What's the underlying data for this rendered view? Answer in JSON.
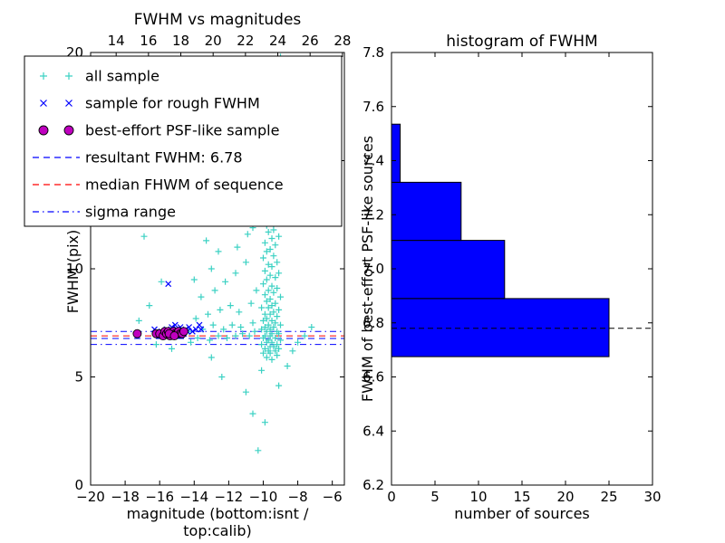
{
  "figure": {
    "background": "#ffffff"
  },
  "chart_data": [
    {
      "type": "scatter",
      "title": "FWHM vs magnitudes",
      "xlabel": "magnitude (bottom:isnt / top:calib)",
      "ylabel": "FWHM (pix)",
      "xlim": [
        -20,
        -5.3
      ],
      "ylim": [
        0,
        20
      ],
      "xticks": [
        [
          -20,
          "−20"
        ],
        [
          -18,
          "−18"
        ],
        [
          -16,
          "−16"
        ],
        [
          -14,
          "−14"
        ],
        [
          -12,
          "−12"
        ],
        [
          -10,
          "−10"
        ],
        [
          -8,
          "−8"
        ],
        [
          -6,
          "−6"
        ]
      ],
      "yticks": [
        [
          0,
          "0"
        ],
        [
          5,
          "5"
        ],
        [
          10,
          "10"
        ],
        [
          15,
          "15"
        ],
        [
          20,
          "20"
        ]
      ],
      "top_axis": {
        "lim": [
          12.42,
          28.12
        ],
        "ticks": [
          14,
          16,
          18,
          20,
          22,
          24,
          26,
          28
        ]
      },
      "series": [
        {
          "name": "all sample",
          "marker": "plus",
          "color": "#3BD1C3",
          "points": [
            [
              -9.5,
              5.8
            ],
            [
              -9.8,
              5.9
            ],
            [
              -9.2,
              6.0
            ],
            [
              -9.6,
              6.1
            ],
            [
              -10.0,
              6.1
            ],
            [
              -9.3,
              6.2
            ],
            [
              -9.7,
              6.2
            ],
            [
              -9.1,
              6.3
            ],
            [
              -9.9,
              6.3
            ],
            [
              -9.4,
              6.4
            ],
            [
              -9.6,
              6.4
            ],
            [
              -10.1,
              6.5
            ],
            [
              -9.2,
              6.5
            ],
            [
              -9.8,
              6.6
            ],
            [
              -9.5,
              6.6
            ],
            [
              -9.0,
              6.7
            ],
            [
              -9.7,
              6.7
            ],
            [
              -10.0,
              6.8
            ],
            [
              -9.3,
              6.8
            ],
            [
              -9.6,
              6.9
            ],
            [
              -9.9,
              6.9
            ],
            [
              -9.1,
              7.0
            ],
            [
              -9.5,
              7.0
            ],
            [
              -9.8,
              7.1
            ],
            [
              -9.2,
              7.1
            ],
            [
              -10.1,
              7.2
            ],
            [
              -9.6,
              7.2
            ],
            [
              -9.4,
              7.3
            ],
            [
              -9.9,
              7.3
            ],
            [
              -9.0,
              7.4
            ],
            [
              -9.7,
              7.4
            ],
            [
              -9.3,
              7.5
            ],
            [
              -10.0,
              7.6
            ],
            [
              -9.5,
              7.6
            ],
            [
              -9.8,
              7.7
            ],
            [
              -9.2,
              7.8
            ],
            [
              -9.6,
              7.9
            ],
            [
              -9.9,
              7.9
            ],
            [
              -9.4,
              8.0
            ],
            [
              -9.1,
              8.1
            ],
            [
              -9.7,
              8.2
            ],
            [
              -10.1,
              8.2
            ],
            [
              -9.5,
              8.3
            ],
            [
              -9.3,
              8.4
            ],
            [
              -9.8,
              8.5
            ],
            [
              -9.6,
              8.6
            ],
            [
              -9.0,
              8.7
            ],
            [
              -9.9,
              8.8
            ],
            [
              -9.4,
              8.9
            ],
            [
              -9.7,
              9.0
            ],
            [
              -9.2,
              9.1
            ],
            [
              -9.5,
              9.2
            ],
            [
              -10.0,
              9.3
            ],
            [
              -9.8,
              9.5
            ],
            [
              -9.3,
              9.6
            ],
            [
              -9.6,
              9.7
            ],
            [
              -9.1,
              9.8
            ],
            [
              -9.9,
              9.9
            ],
            [
              -9.5,
              10.1
            ],
            [
              -9.7,
              10.2
            ],
            [
              -9.2,
              10.3
            ],
            [
              -10.0,
              10.5
            ],
            [
              -9.4,
              10.6
            ],
            [
              -9.8,
              10.8
            ],
            [
              -9.6,
              10.9
            ],
            [
              -9.3,
              11.1
            ],
            [
              -9.9,
              11.2
            ],
            [
              -9.5,
              11.4
            ],
            [
              -9.1,
              11.5
            ],
            [
              -9.7,
              11.7
            ],
            [
              -9.4,
              11.8
            ],
            [
              -9.8,
              12.0
            ],
            [
              -9.6,
              12.1
            ],
            [
              -9.2,
              12.3
            ],
            [
              -14.2,
              6.6
            ],
            [
              -13.8,
              6.8
            ],
            [
              -13.1,
              6.7
            ],
            [
              -12.6,
              6.9
            ],
            [
              -12.1,
              6.8
            ],
            [
              -11.6,
              6.9
            ],
            [
              -11.2,
              7.0
            ],
            [
              -10.8,
              6.9
            ],
            [
              -10.5,
              7.1
            ],
            [
              -13.5,
              7.2
            ],
            [
              -12.9,
              7.4
            ],
            [
              -12.3,
              7.2
            ],
            [
              -11.8,
              7.4
            ],
            [
              -11.3,
              7.3
            ],
            [
              -10.6,
              7.5
            ],
            [
              -13.9,
              7.7
            ],
            [
              -13.2,
              7.9
            ],
            [
              -12.5,
              8.1
            ],
            [
              -11.9,
              8.3
            ],
            [
              -11.4,
              8.0
            ],
            [
              -10.7,
              8.4
            ],
            [
              -13.6,
              8.7
            ],
            [
              -12.8,
              9.0
            ],
            [
              -12.2,
              9.4
            ],
            [
              -11.6,
              9.8
            ],
            [
              -11.0,
              10.3
            ],
            [
              -12.6,
              10.8
            ],
            [
              -13.3,
              11.3
            ],
            [
              -11.5,
              11.0
            ],
            [
              -10.9,
              11.6
            ],
            [
              -12.0,
              12.1
            ],
            [
              -12.9,
              12.6
            ],
            [
              -11.2,
              12.4
            ],
            [
              -13.0,
              10.0
            ],
            [
              -14.0,
              9.5
            ],
            [
              -10.4,
              9.0
            ],
            [
              -10.6,
              11.9
            ],
            [
              -11.8,
              12.8
            ],
            [
              -13.4,
              12.2
            ],
            [
              -14.3,
              7.1
            ],
            [
              -16.5,
              12.9
            ],
            [
              -15.8,
              13.4
            ],
            [
              -15.2,
              12.7
            ],
            [
              -14.6,
              13.8
            ],
            [
              -14.0,
              14.5
            ],
            [
              -13.5,
              13.2
            ],
            [
              -13.0,
              14.9
            ],
            [
              -12.5,
              15.6
            ],
            [
              -12.0,
              14.2
            ],
            [
              -11.5,
              15.1
            ],
            [
              -11.0,
              16.0
            ],
            [
              -10.5,
              15.4
            ],
            [
              -10.0,
              16.6
            ],
            [
              -9.6,
              17.2
            ],
            [
              -9.2,
              16.1
            ],
            [
              -8.8,
              17.8
            ],
            [
              -8.4,
              16.9
            ],
            [
              -8.0,
              17.5
            ],
            [
              -12.8,
              17.0
            ],
            [
              -13.6,
              16.4
            ],
            [
              -14.4,
              15.9
            ],
            [
              -15.0,
              16.8
            ],
            [
              -10.8,
              17.9
            ],
            [
              -11.8,
              18.2
            ],
            [
              -12.4,
              18.6
            ],
            [
              -13.2,
              18.9
            ],
            [
              -9.9,
              18.4
            ],
            [
              -9.4,
              19.0
            ],
            [
              -8.9,
              18.7
            ],
            [
              -8.5,
              19.3
            ],
            [
              -10.2,
              19.5
            ],
            [
              -11.2,
              19.2
            ],
            [
              -12.1,
              19.7
            ],
            [
              -13.8,
              19.4
            ],
            [
              -14.8,
              18.8
            ],
            [
              -9.0,
              19.8
            ],
            [
              -10.6,
              18.1
            ],
            [
              -8.2,
              18.9
            ],
            [
              -7.8,
              17.1
            ],
            [
              -7.5,
              18.3
            ],
            [
              -15.5,
              14.8
            ],
            [
              -16.0,
              15.6
            ],
            [
              -8.6,
              15.8
            ],
            [
              -7.9,
              19.6
            ],
            [
              -16.8,
              13.9
            ],
            [
              -10.3,
              1.6
            ],
            [
              -9.9,
              2.9
            ],
            [
              -10.6,
              3.3
            ],
            [
              -11.0,
              4.3
            ],
            [
              -12.4,
              5.0
            ],
            [
              -9.1,
              4.6
            ],
            [
              -10.1,
              5.3
            ],
            [
              -8.6,
              5.5
            ],
            [
              -13.0,
              5.9
            ],
            [
              -15.3,
              6.3
            ],
            [
              -16.2,
              6.5
            ],
            [
              -8.3,
              6.2
            ],
            [
              -8.0,
              6.6
            ],
            [
              -7.6,
              6.9
            ],
            [
              -7.2,
              7.3
            ],
            [
              -17.2,
              7.6
            ],
            [
              -16.6,
              8.3
            ],
            [
              -15.9,
              9.4
            ],
            [
              -16.9,
              11.5
            ]
          ]
        },
        {
          "name": "sample for rough FWHM",
          "marker": "x",
          "color": "#0000FF",
          "points": [
            [
              -16.3,
              7.2
            ],
            [
              -16.1,
              7.0
            ],
            [
              -15.9,
              7.1
            ],
            [
              -15.7,
              7.0
            ],
            [
              -15.6,
              7.2
            ],
            [
              -15.4,
              7.1
            ],
            [
              -15.3,
              7.3
            ],
            [
              -15.2,
              6.9
            ],
            [
              -15.0,
              7.2
            ],
            [
              -14.9,
              7.0
            ],
            [
              -14.8,
              7.3
            ],
            [
              -14.7,
              7.1
            ],
            [
              -14.6,
              7.0
            ],
            [
              -14.5,
              7.2
            ],
            [
              -14.4,
              7.1
            ],
            [
              -14.3,
              7.3
            ],
            [
              -14.1,
              7.1
            ],
            [
              -13.9,
              7.2
            ],
            [
              -13.7,
              7.4
            ],
            [
              -13.6,
              7.2
            ],
            [
              -15.5,
              9.3
            ],
            [
              -15.1,
              7.4
            ]
          ]
        },
        {
          "name": "best-effort PSF-like sample",
          "marker": "circle",
          "color": "#BF00BF",
          "edge": "#000000",
          "points": [
            [
              -17.3,
              7.0
            ],
            [
              -16.2,
              7.0
            ],
            [
              -16.0,
              7.0
            ],
            [
              -15.8,
              6.9
            ],
            [
              -15.7,
              7.1
            ],
            [
              -15.6,
              7.0
            ],
            [
              -15.5,
              7.1
            ],
            [
              -15.4,
              6.9
            ],
            [
              -15.3,
              7.0
            ],
            [
              -15.2,
              7.1
            ],
            [
              -15.1,
              7.0
            ],
            [
              -15.0,
              7.0
            ],
            [
              -14.9,
              7.1
            ],
            [
              -14.8,
              7.0
            ],
            [
              -14.7,
              7.0
            ],
            [
              -14.6,
              7.1
            ],
            [
              -15.45,
              7.0
            ],
            [
              -15.15,
              6.9
            ]
          ]
        }
      ],
      "hlines": [
        {
          "name": "resultant FWHM: 6.78",
          "y": 6.78,
          "color": "#0000FF",
          "style": "dashed"
        },
        {
          "name": "median FHWM of sequence",
          "y": 6.9,
          "color": "#FF0000",
          "style": "dashed"
        },
        {
          "name": "sigma range",
          "y": [
            6.5,
            7.1
          ],
          "color": "#0000FF",
          "style": "dashdot"
        }
      ],
      "legend": [
        {
          "label": "all sample",
          "swatch": "plus",
          "color": "#3BD1C3"
        },
        {
          "label": "sample for rough FWHM",
          "swatch": "x",
          "color": "#0000FF"
        },
        {
          "label": "best-effort PSF-like sample",
          "swatch": "circle",
          "color": "#BF00BF"
        },
        {
          "label": "resultant FWHM: 6.78",
          "swatch": "dashed",
          "color": "#0000FF"
        },
        {
          "label": "median FHWM of sequence",
          "swatch": "dashed",
          "color": "#FF0000"
        },
        {
          "label": "sigma range",
          "swatch": "dashdot",
          "color": "#0000FF"
        }
      ]
    },
    {
      "type": "bar-horizontal",
      "title": "histogram of FWHM",
      "xlabel": "number of sources",
      "ylabel": "FWHM of best-effort PSF-like sources",
      "xlim": [
        0,
        30
      ],
      "ylim": [
        6.2,
        7.8
      ],
      "xticks": [
        [
          0,
          "0"
        ],
        [
          5,
          "5"
        ],
        [
          10,
          "10"
        ],
        [
          15,
          "15"
        ],
        [
          20,
          "20"
        ],
        [
          25,
          "25"
        ],
        [
          30,
          "30"
        ]
      ],
      "yticks": [
        [
          6.2,
          "6.2"
        ],
        [
          6.4,
          "6.4"
        ],
        [
          6.6,
          "6.6"
        ],
        [
          6.8,
          "6.8"
        ],
        [
          7.0,
          "7.0"
        ],
        [
          7.2,
          "7.2"
        ],
        [
          7.4,
          "7.4"
        ],
        [
          7.6,
          "7.6"
        ],
        [
          7.8,
          "7.8"
        ]
      ],
      "bins": [
        {
          "from": 6.675,
          "to": 6.89,
          "count": 25
        },
        {
          "from": 6.89,
          "to": 7.105,
          "count": 13
        },
        {
          "from": 7.105,
          "to": 7.32,
          "count": 8
        },
        {
          "from": 7.32,
          "to": 7.535,
          "count": 1
        }
      ],
      "bar_color": "#0000FF",
      "bar_edge": "#000000",
      "dashed_line_y": 6.78,
      "dashed_line_color": "#000000"
    }
  ]
}
